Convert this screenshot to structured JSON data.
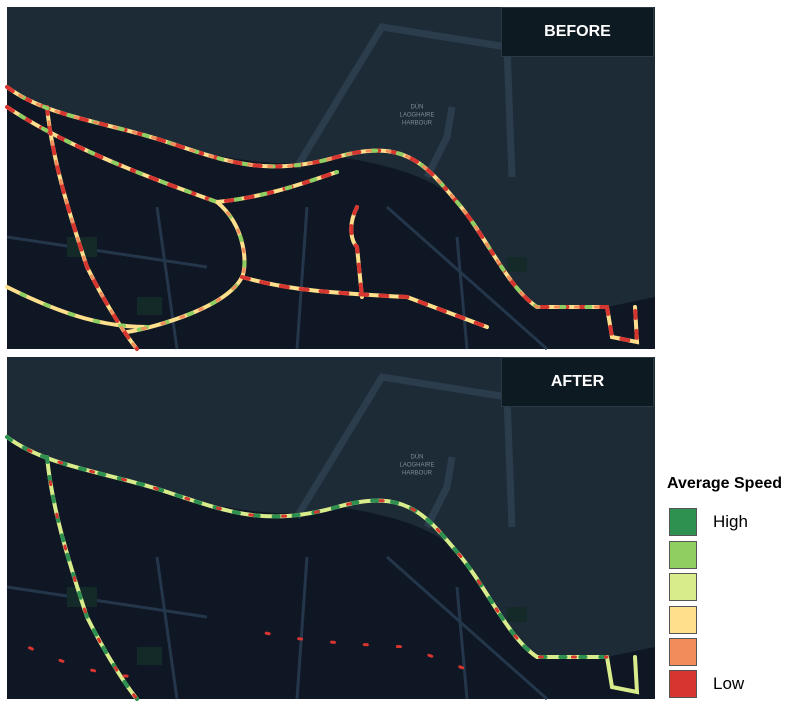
{
  "panels": [
    {
      "label": "BEFORE",
      "place_label": [
        "DÚN",
        "LAOGHAIRE",
        "HARBOUR"
      ]
    },
    {
      "label": "AFTER",
      "place_label": [
        "DÚN",
        "LAOGHAIRE",
        "HARBOUR"
      ]
    }
  ],
  "legend": {
    "title": "Average Speed",
    "swatches": [
      {
        "color": "#2e9150",
        "label": "High"
      },
      {
        "color": "#8fcf62"
      },
      {
        "color": "#d9ec8b"
      },
      {
        "color": "#fddf8c"
      },
      {
        "color": "#f28c5a"
      },
      {
        "color": "#d73530",
        "label": "Low"
      }
    ]
  }
}
